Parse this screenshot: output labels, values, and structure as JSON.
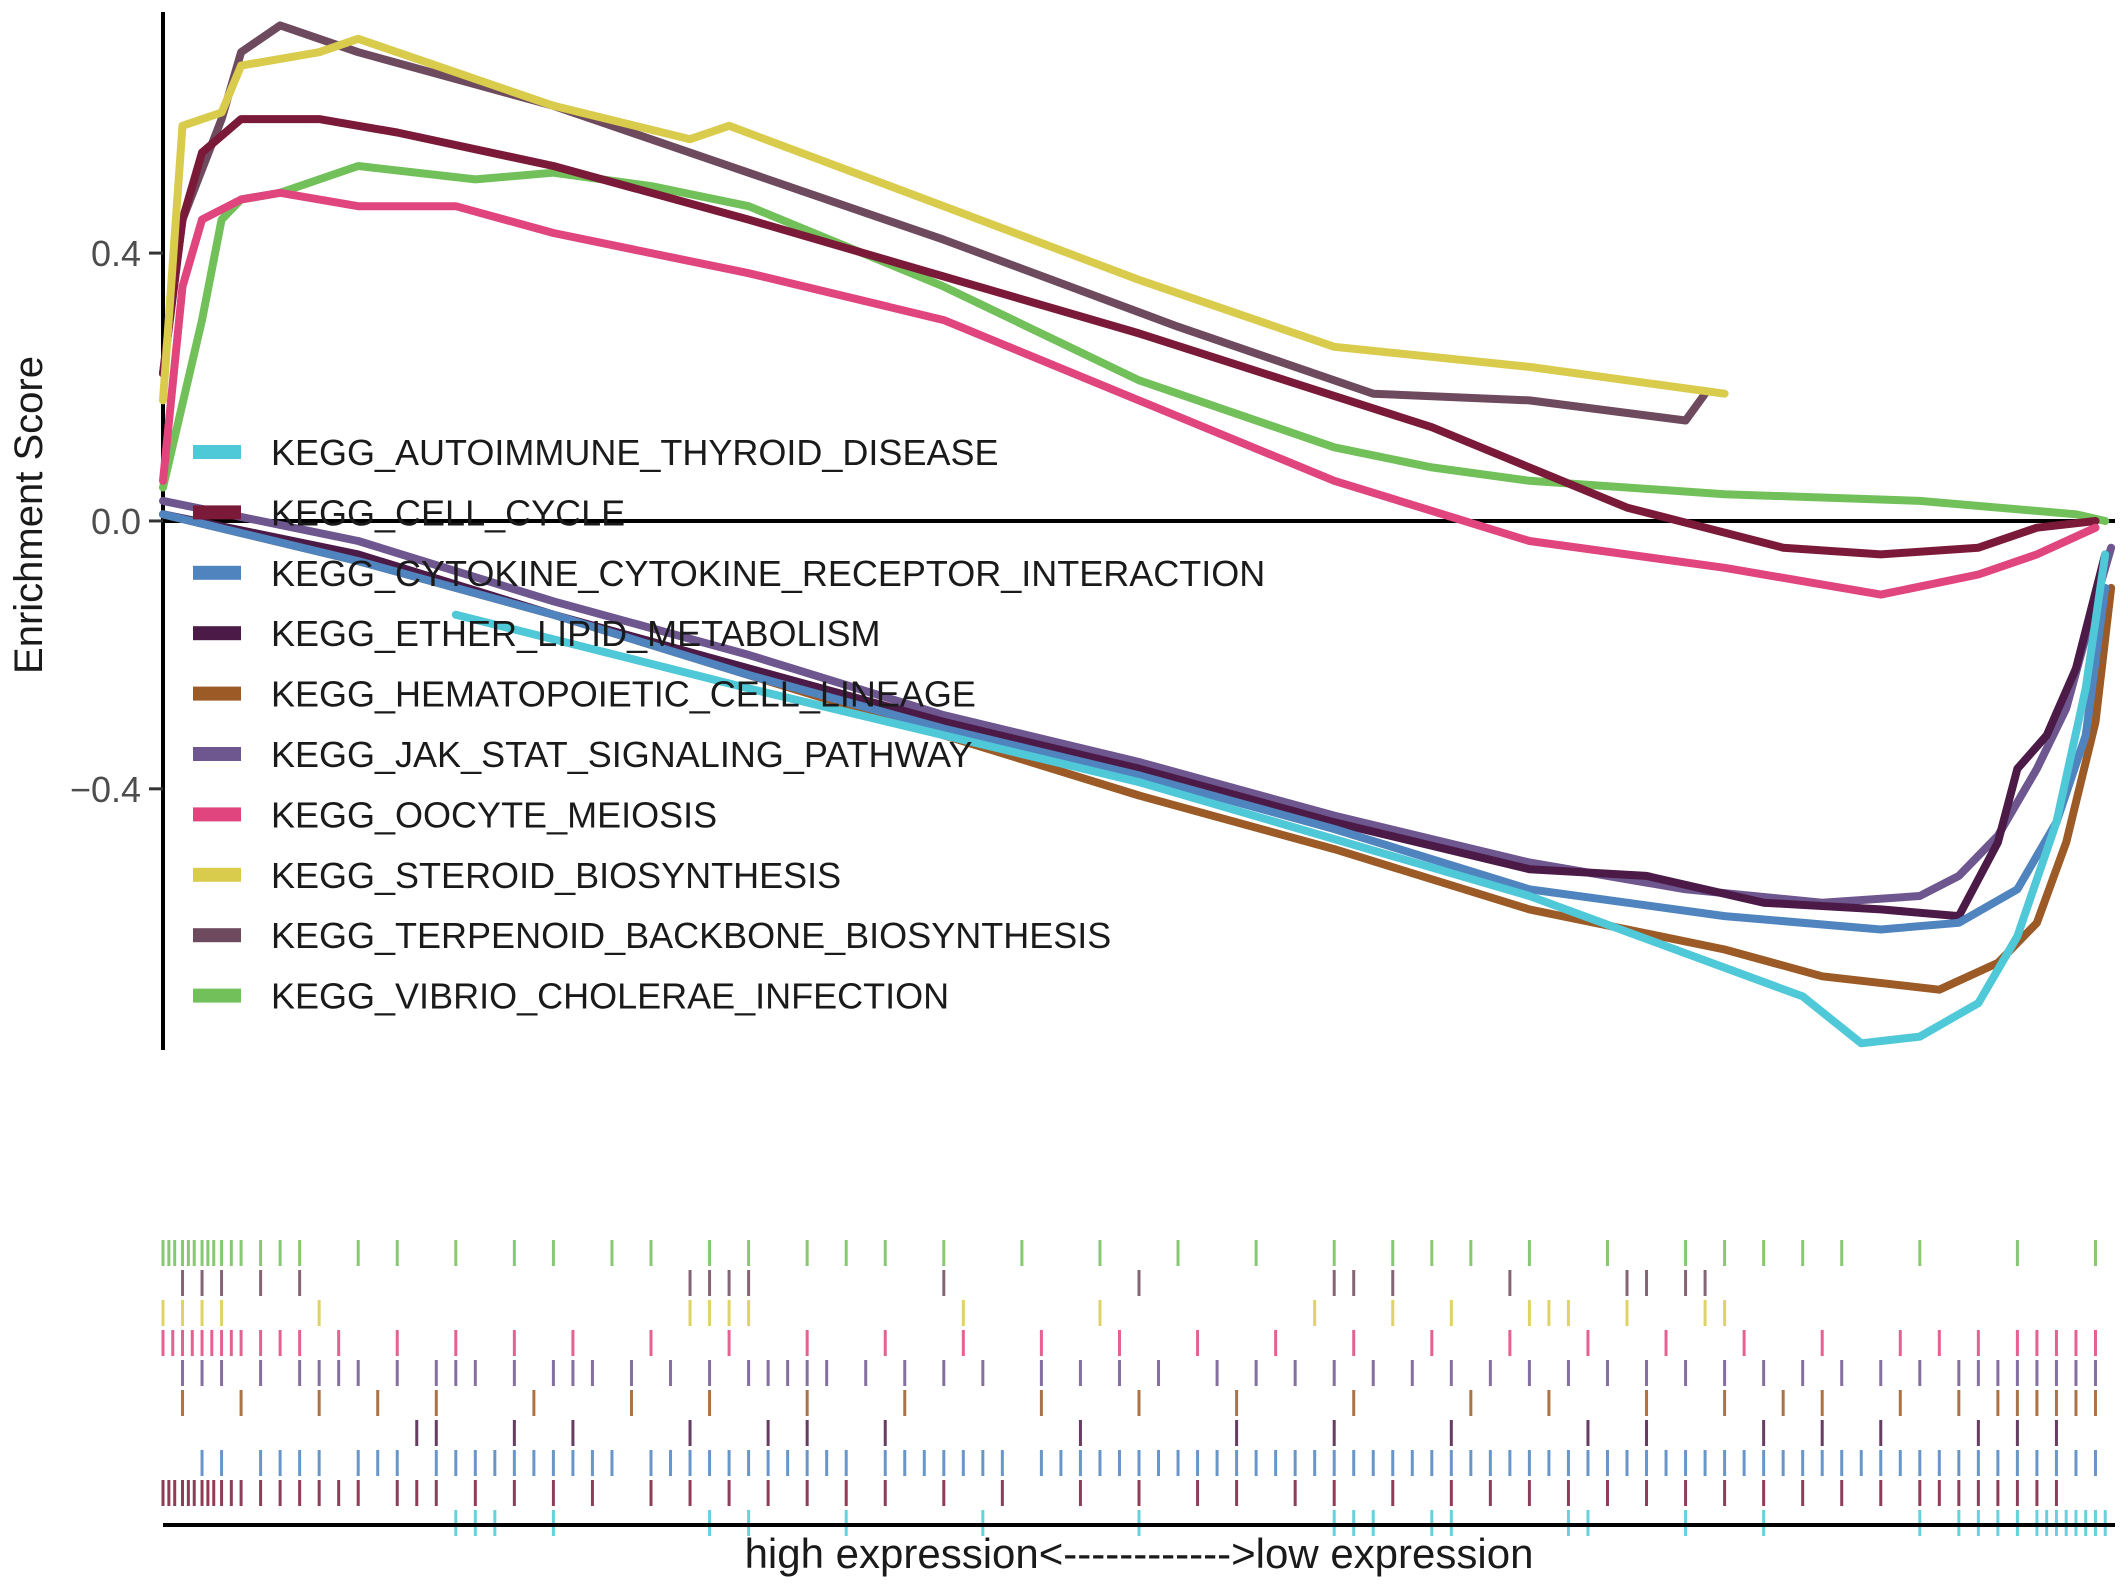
{
  "chart_data": {
    "type": "line",
    "title": "",
    "ylabel": "Enrichment Score",
    "xlabel": "high expression<------------>low expression",
    "ylim": [
      -0.79,
      0.76
    ],
    "xlim": [
      0,
      100
    ],
    "yticks": [
      {
        "value": 0.4,
        "label": "0.4"
      },
      {
        "value": 0.0,
        "label": "0.0"
      },
      {
        "value": -0.4,
        "label": "−0.4"
      }
    ],
    "grid": false,
    "legend_position": "inside-left",
    "series": [
      {
        "name": "KEGG_AUTOIMMUNE_THYROID_DISEASE",
        "color": "#4FC8D8",
        "points": [
          [
            15,
            -0.14
          ],
          [
            30,
            -0.25
          ],
          [
            50,
            -0.39
          ],
          [
            70,
            -0.56
          ],
          [
            84,
            -0.71
          ],
          [
            87,
            -0.78
          ],
          [
            90,
            -0.77
          ],
          [
            93,
            -0.72
          ],
          [
            95,
            -0.62
          ],
          [
            97,
            -0.45
          ],
          [
            98.5,
            -0.25
          ],
          [
            99.5,
            -0.05
          ]
        ],
        "hits": [
          15,
          16,
          17,
          20,
          28,
          30,
          35,
          42,
          50,
          60,
          61,
          62,
          65,
          66,
          72,
          73,
          78,
          82,
          90,
          92,
          93,
          94,
          95,
          96,
          96.5,
          97,
          97.5,
          98,
          98.5,
          99,
          99.5
        ]
      },
      {
        "name": "KEGG_CELL_CYCLE",
        "color": "#7B1A38",
        "points": [
          [
            0,
            0.22
          ],
          [
            1,
            0.45
          ],
          [
            2,
            0.55
          ],
          [
            4,
            0.6
          ],
          [
            8,
            0.6
          ],
          [
            12,
            0.58
          ],
          [
            20,
            0.53
          ],
          [
            30,
            0.45
          ],
          [
            50,
            0.28
          ],
          [
            65,
            0.14
          ],
          [
            75,
            0.02
          ],
          [
            83,
            -0.04
          ],
          [
            88,
            -0.05
          ],
          [
            93,
            -0.04
          ],
          [
            96,
            -0.01
          ],
          [
            99,
            0.0
          ]
        ],
        "hits": [
          0,
          0.3,
          0.6,
          1,
          1.3,
          1.6,
          2,
          2.3,
          2.6,
          3,
          3.5,
          4,
          5,
          6,
          7,
          8,
          9,
          10,
          12,
          13,
          14,
          16,
          18,
          20,
          22,
          25,
          27,
          29,
          31,
          33,
          35,
          37,
          40,
          43,
          47,
          50,
          53,
          55,
          58,
          60,
          63,
          66,
          68,
          70,
          72,
          74,
          76,
          78,
          80,
          82,
          84,
          86,
          88,
          90,
          91,
          92,
          93,
          94,
          95,
          96,
          97
        ]
      },
      {
        "name": "KEGG_CYTOKINE_CYTOKINE_RECEPTOR_INTERACTION",
        "color": "#4F84BE",
        "points": [
          [
            0,
            0.01
          ],
          [
            10,
            -0.06
          ],
          [
            20,
            -0.14
          ],
          [
            30,
            -0.23
          ],
          [
            40,
            -0.31
          ],
          [
            50,
            -0.38
          ],
          [
            60,
            -0.46
          ],
          [
            70,
            -0.55
          ],
          [
            80,
            -0.59
          ],
          [
            88,
            -0.61
          ],
          [
            92,
            -0.6
          ],
          [
            95,
            -0.55
          ],
          [
            97,
            -0.45
          ],
          [
            98.5,
            -0.32
          ],
          [
            99.5,
            -0.1
          ]
        ],
        "hits": [
          2,
          3,
          5,
          6,
          7,
          8,
          10,
          11,
          12,
          14,
          15,
          16,
          17,
          18,
          19,
          20,
          21,
          22,
          23,
          25,
          26,
          27,
          28,
          29,
          30,
          31,
          32,
          33,
          34,
          35,
          37,
          38,
          39,
          40,
          41,
          42,
          43,
          45,
          46,
          47,
          48,
          49,
          50,
          51,
          52,
          53,
          54,
          55,
          56,
          57,
          58,
          59,
          60,
          61,
          62,
          63,
          64,
          65,
          66,
          67,
          68,
          69,
          70,
          71,
          72,
          73,
          74,
          75,
          76,
          77,
          78,
          79,
          80,
          81,
          82,
          83,
          84,
          85,
          86,
          87,
          88,
          89,
          90,
          91,
          92,
          93,
          94,
          95,
          96,
          97,
          98,
          99
        ]
      },
      {
        "name": "KEGG_ETHER_LIPID_METABOLISM",
        "color": "#4B1A46",
        "points": [
          [
            0,
            0.01
          ],
          [
            10,
            -0.05
          ],
          [
            20,
            -0.14
          ],
          [
            30,
            -0.22
          ],
          [
            40,
            -0.3
          ],
          [
            50,
            -0.37
          ],
          [
            60,
            -0.45
          ],
          [
            70,
            -0.52
          ],
          [
            76,
            -0.53
          ],
          [
            82,
            -0.57
          ],
          [
            88,
            -0.58
          ],
          [
            92,
            -0.59
          ],
          [
            94,
            -0.48
          ],
          [
            95,
            -0.37
          ],
          [
            96.5,
            -0.32
          ],
          [
            98,
            -0.22
          ],
          [
            99.5,
            -0.05
          ]
        ],
        "hits": [
          13,
          14,
          18,
          21,
          27,
          31,
          33,
          37,
          47,
          55,
          60,
          66,
          73,
          76,
          82,
          85,
          88,
          93,
          95,
          97
        ]
      },
      {
        "name": "KEGG_HEMATOPOIETIC_CELL_LINEAGE",
        "color": "#9C5A26",
        "points": [
          [
            0,
            0.01
          ],
          [
            10,
            -0.06
          ],
          [
            20,
            -0.14
          ],
          [
            30,
            -0.23
          ],
          [
            40,
            -0.32
          ],
          [
            50,
            -0.41
          ],
          [
            60,
            -0.49
          ],
          [
            70,
            -0.58
          ],
          [
            80,
            -0.64
          ],
          [
            85,
            -0.68
          ],
          [
            91,
            -0.7
          ],
          [
            94,
            -0.66
          ],
          [
            96,
            -0.6
          ],
          [
            97.5,
            -0.48
          ],
          [
            99,
            -0.3
          ],
          [
            99.8,
            -0.1
          ]
        ],
        "hits": [
          1,
          4,
          8,
          11,
          14,
          19,
          24,
          28,
          33,
          38,
          45,
          50,
          55,
          61,
          67,
          71,
          76,
          80,
          83,
          85,
          89,
          92,
          94,
          95,
          96,
          97,
          98,
          99
        ]
      },
      {
        "name": "KEGG_JAK_STAT_SIGNALING_PATHWAY",
        "color": "#6E568F",
        "points": [
          [
            0,
            0.03
          ],
          [
            10,
            -0.03
          ],
          [
            20,
            -0.12
          ],
          [
            30,
            -0.2
          ],
          [
            40,
            -0.29
          ],
          [
            50,
            -0.36
          ],
          [
            60,
            -0.44
          ],
          [
            70,
            -0.51
          ],
          [
            78,
            -0.55
          ],
          [
            85,
            -0.57
          ],
          [
            90,
            -0.56
          ],
          [
            92,
            -0.53
          ],
          [
            94,
            -0.47
          ],
          [
            96,
            -0.37
          ],
          [
            97.5,
            -0.28
          ],
          [
            99,
            -0.12
          ],
          [
            99.8,
            -0.04
          ]
        ],
        "hits": [
          1,
          2,
          3,
          5,
          7,
          8,
          9,
          10,
          12,
          14,
          15,
          16,
          18,
          20,
          21,
          22,
          24,
          26,
          28,
          30,
          31,
          32,
          33,
          34,
          36,
          38,
          40,
          42,
          45,
          47,
          49,
          51,
          54,
          56,
          58,
          60,
          62,
          64,
          66,
          68,
          70,
          72,
          74,
          76,
          78,
          80,
          82,
          84,
          86,
          88,
          90,
          92,
          93,
          94,
          95,
          96,
          97,
          98,
          99
        ]
      },
      {
        "name": "KEGG_OOCYTE_MEIOSIS",
        "color": "#E0457E",
        "points": [
          [
            0,
            0.06
          ],
          [
            1,
            0.35
          ],
          [
            2,
            0.45
          ],
          [
            4,
            0.48
          ],
          [
            6,
            0.49
          ],
          [
            10,
            0.47
          ],
          [
            15,
            0.47
          ],
          [
            20,
            0.43
          ],
          [
            30,
            0.37
          ],
          [
            40,
            0.3
          ],
          [
            50,
            0.18
          ],
          [
            60,
            0.06
          ],
          [
            70,
            -0.03
          ],
          [
            80,
            -0.07
          ],
          [
            88,
            -0.11
          ],
          [
            93,
            -0.08
          ],
          [
            96,
            -0.05
          ],
          [
            99,
            -0.01
          ]
        ],
        "hits": [
          0,
          0.5,
          1,
          1.5,
          2,
          2.5,
          3,
          3.5,
          4,
          5,
          6,
          7,
          9,
          12,
          15,
          18,
          21,
          25,
          29,
          33,
          37,
          41,
          45,
          49,
          53,
          57,
          61,
          65,
          69,
          73,
          77,
          81,
          85,
          89,
          91,
          93,
          95,
          96,
          97,
          98,
          99
        ]
      },
      {
        "name": "KEGG_STEROID_BIOSYNTHESIS",
        "color": "#D9CB4B",
        "points": [
          [
            0,
            0.18
          ],
          [
            1,
            0.59
          ],
          [
            3,
            0.61
          ],
          [
            4,
            0.68
          ],
          [
            6,
            0.69
          ],
          [
            8,
            0.7
          ],
          [
            10,
            0.72
          ],
          [
            20,
            0.62
          ],
          [
            27,
            0.57
          ],
          [
            29,
            0.59
          ],
          [
            40,
            0.47
          ],
          [
            50,
            0.36
          ],
          [
            60,
            0.26
          ],
          [
            70,
            0.23
          ],
          [
            80,
            0.19
          ]
        ],
        "hits": [
          0,
          1,
          2,
          3,
          8,
          27,
          28,
          29,
          30,
          41,
          48,
          59,
          63,
          66,
          70,
          71,
          72,
          75,
          79,
          80
        ]
      },
      {
        "name": "KEGG_TERPENOID_BACKBONE_BIOSYNTHESIS",
        "color": "#6E4A5E",
        "points": [
          [
            0,
            0.22
          ],
          [
            1,
            0.45
          ],
          [
            3,
            0.6
          ],
          [
            4,
            0.7
          ],
          [
            6,
            0.74
          ],
          [
            10,
            0.7
          ],
          [
            20,
            0.62
          ],
          [
            30,
            0.52
          ],
          [
            40,
            0.42
          ],
          [
            52,
            0.29
          ],
          [
            62,
            0.19
          ],
          [
            70,
            0.18
          ],
          [
            78,
            0.15
          ],
          [
            79,
            0.19
          ]
        ],
        "hits": [
          1,
          2,
          3,
          5,
          7,
          27,
          28,
          29,
          30,
          40,
          50,
          60,
          61,
          63,
          69,
          75,
          76,
          78,
          79
        ]
      },
      {
        "name": "KEGG_VIBRIO_CHOLERAE_INFECTION",
        "color": "#72C05A",
        "points": [
          [
            0,
            0.05
          ],
          [
            2,
            0.3
          ],
          [
            3,
            0.45
          ],
          [
            4,
            0.48
          ],
          [
            6,
            0.49
          ],
          [
            8,
            0.51
          ],
          [
            10,
            0.53
          ],
          [
            16,
            0.51
          ],
          [
            20,
            0.52
          ],
          [
            25,
            0.5
          ],
          [
            30,
            0.47
          ],
          [
            40,
            0.35
          ],
          [
            50,
            0.21
          ],
          [
            60,
            0.11
          ],
          [
            65,
            0.08
          ],
          [
            70,
            0.06
          ],
          [
            80,
            0.04
          ],
          [
            90,
            0.03
          ],
          [
            98,
            0.01
          ],
          [
            99.5,
            0.0
          ]
        ],
        "hits": [
          0,
          0.3,
          0.6,
          1,
          1.3,
          1.6,
          2,
          2.3,
          2.6,
          3,
          3.5,
          4,
          5,
          6,
          7,
          10,
          12,
          15,
          18,
          20,
          23,
          25,
          28,
          30,
          33,
          35,
          37,
          40,
          44,
          48,
          52,
          56,
          60,
          63,
          65,
          67,
          70,
          74,
          78,
          80,
          82,
          84,
          86,
          90,
          95,
          99
        ]
      }
    ]
  }
}
